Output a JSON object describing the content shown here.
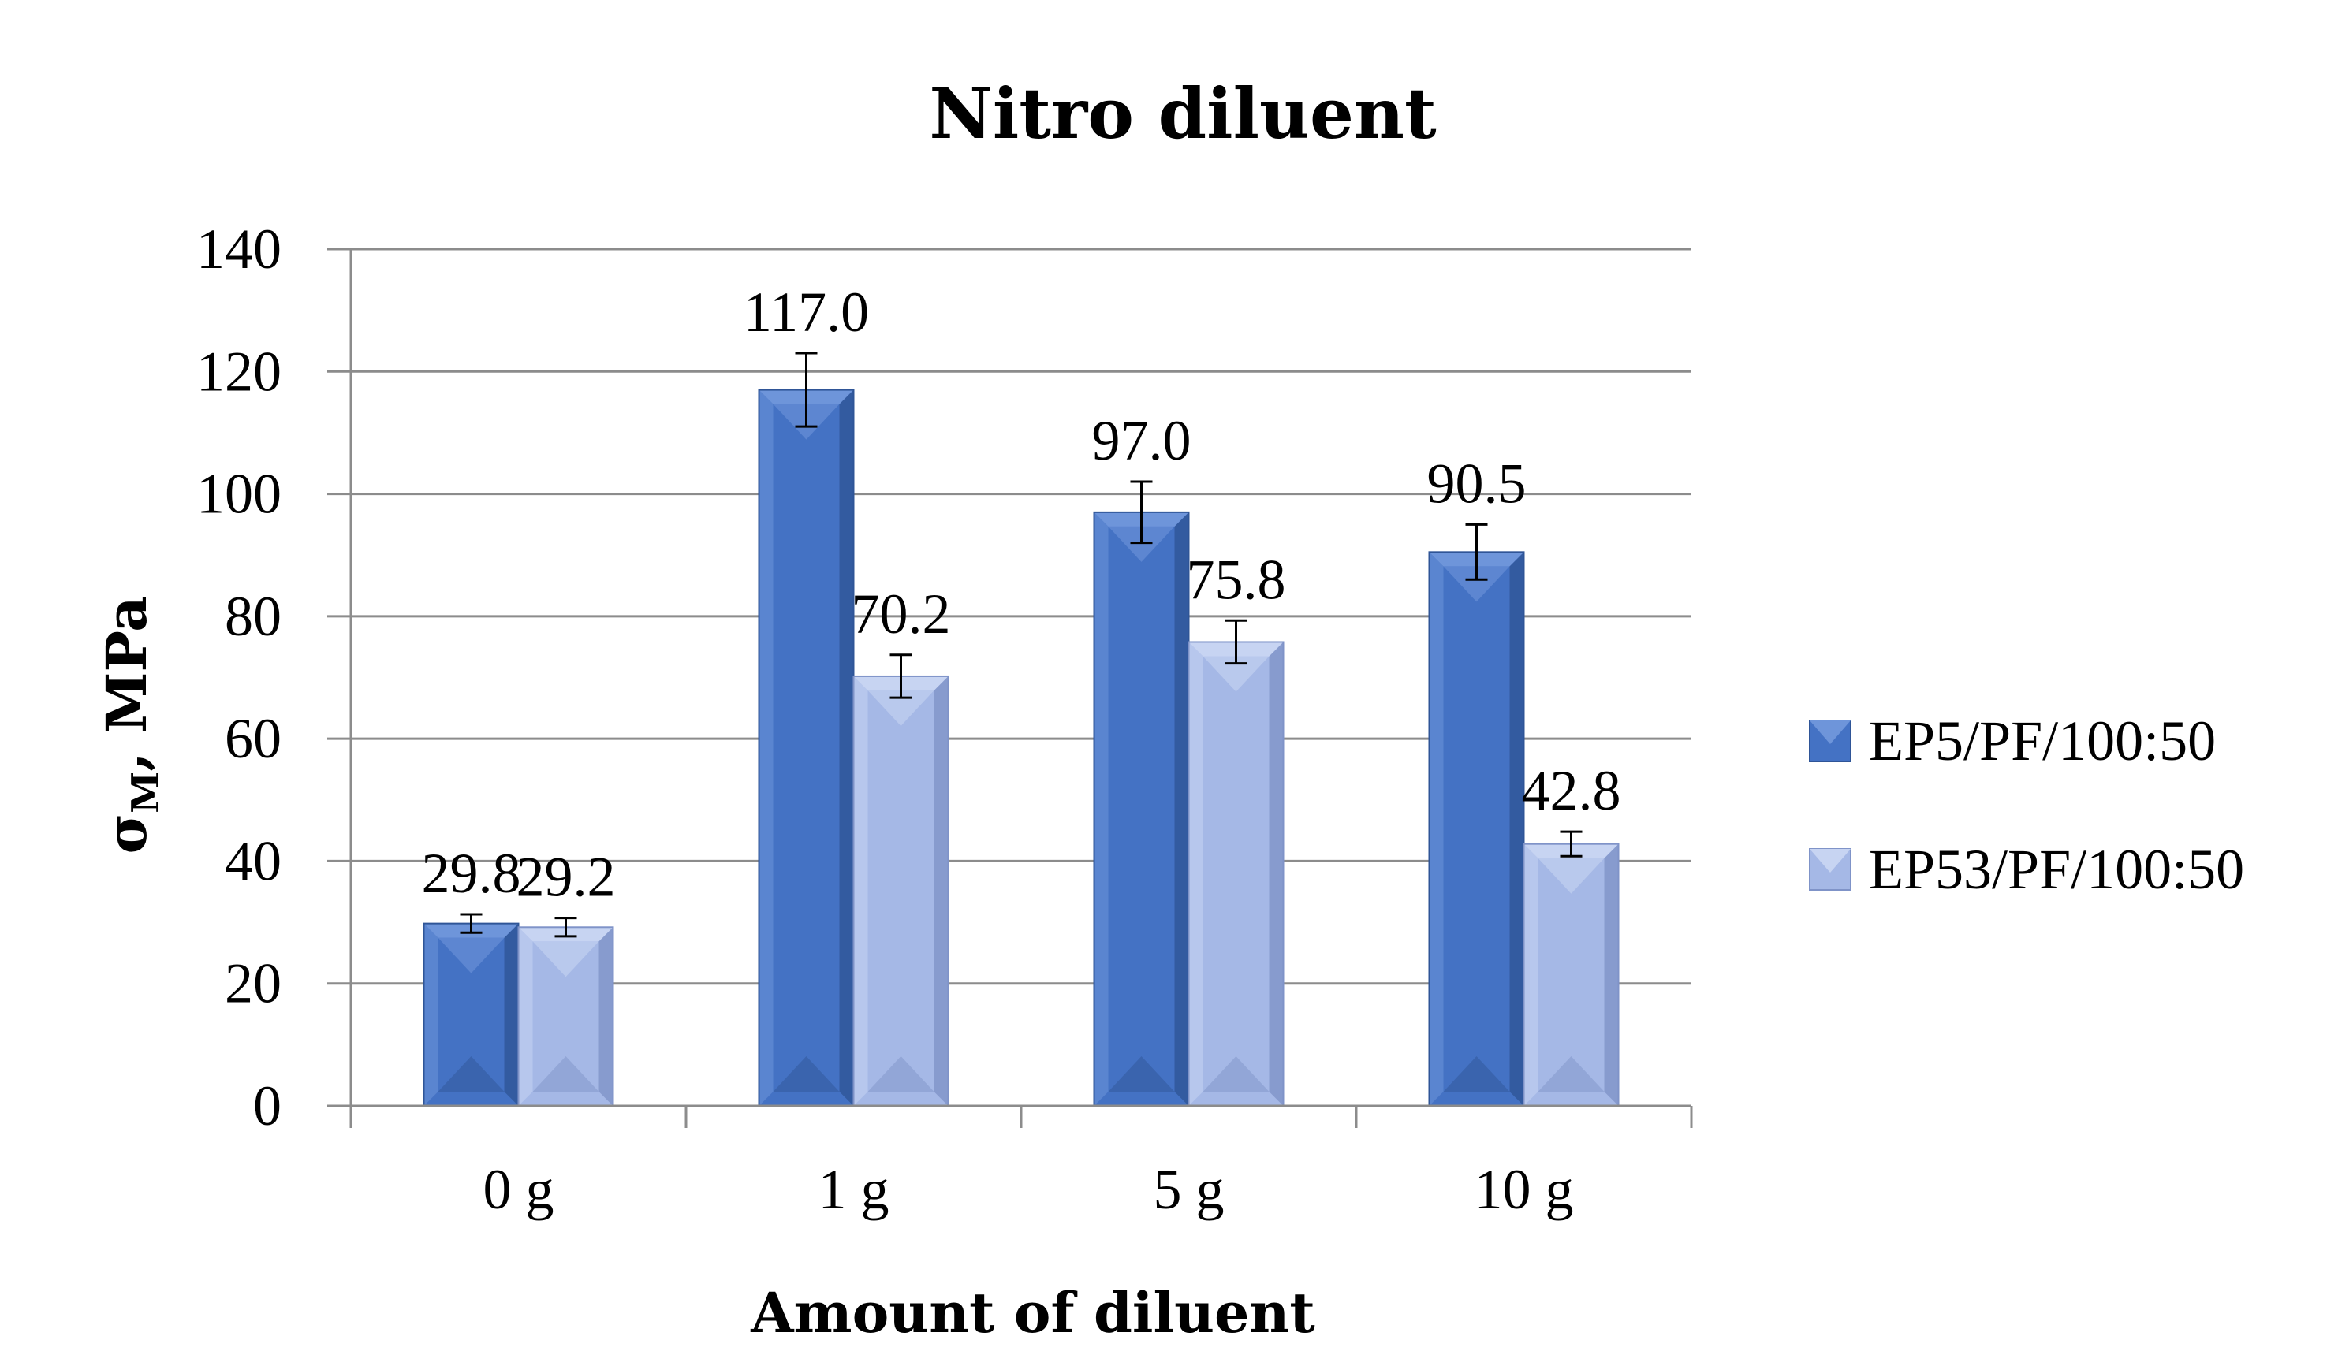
{
  "chart_data": {
    "type": "bar",
    "title": "Nitro diluent",
    "xlabel": "Amount of diluent",
    "ylabel": {
      "main": "σ",
      "sub": "M",
      "rest": ", MPa"
    },
    "categories": [
      "0 g",
      "1 g",
      "5 g",
      "10 g"
    ],
    "ylim": [
      0,
      140
    ],
    "yticks": [
      0,
      20,
      40,
      60,
      80,
      100,
      120,
      140
    ],
    "grid": true,
    "legend_position": "right",
    "series": [
      {
        "name": "EP5/PF/100:50",
        "values": [
          29.8,
          117.0,
          97.0,
          90.5
        ],
        "labels": [
          "29.8",
          "117.0",
          "97.0",
          "90.5"
        ],
        "errors": [
          1.5,
          6.0,
          5.0,
          4.5
        ],
        "color": "#4472C4",
        "dark": "#2F5597",
        "light": "#6E95DA"
      },
      {
        "name": "EP53/PF/100:50",
        "values": [
          29.2,
          70.2,
          75.8,
          42.8
        ],
        "labels": [
          "29.2",
          "70.2",
          "75.8",
          "42.8"
        ],
        "errors": [
          1.5,
          3.5,
          3.5,
          2.0
        ],
        "color": "#A5B8E6",
        "dark": "#7F93C8",
        "light": "#C7D4F2"
      }
    ]
  }
}
